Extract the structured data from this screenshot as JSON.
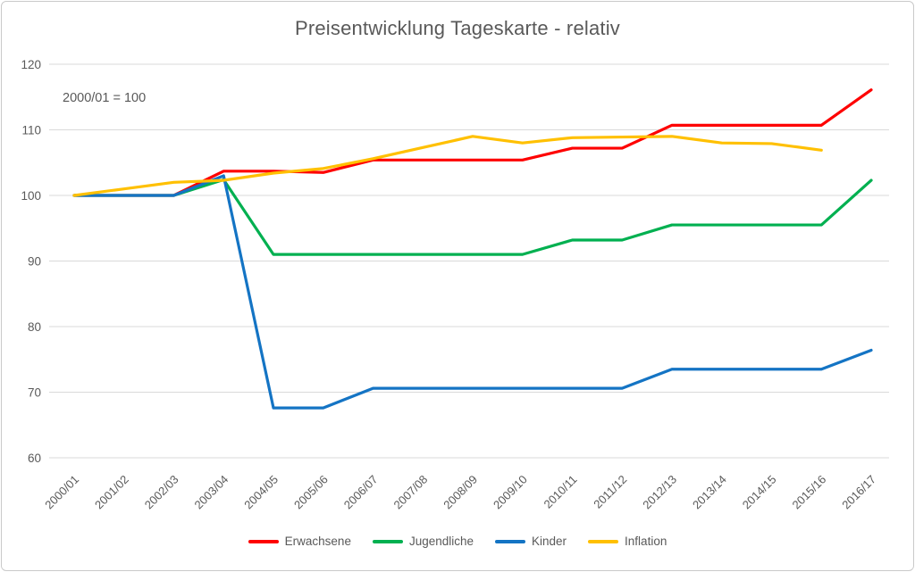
{
  "chart_data": {
    "type": "line",
    "title": "Preisentwicklung Tageskarte - relativ",
    "annotation": "2000/01 = 100",
    "categories": [
      "2000/01",
      "2001/02",
      "2002/03",
      "2003/04",
      "2004/05",
      "2005/06",
      "2006/07",
      "2007/08",
      "2008/09",
      "2009/10",
      "2010/11",
      "2011/12",
      "2012/13",
      "2013/14",
      "2014/15",
      "2015/16",
      "2016/17"
    ],
    "series": [
      {
        "name": "Erwachsene",
        "color": "#fe0000",
        "values": [
          100,
          100,
          100,
          103.7,
          103.7,
          103.5,
          105.4,
          105.4,
          105.4,
          105.4,
          107.2,
          107.2,
          110.7,
          110.7,
          110.7,
          110.7,
          116.1
        ]
      },
      {
        "name": "Jugendliche",
        "color": "#00b050",
        "values": [
          100,
          100,
          100,
          102.4,
          91,
          91,
          91,
          91,
          91,
          91,
          93.2,
          93.2,
          95.5,
          95.5,
          95.5,
          95.5,
          102.3
        ]
      },
      {
        "name": "Kinder",
        "color": "#1474c4",
        "values": [
          100,
          100,
          100,
          103,
          67.6,
          67.6,
          70.6,
          70.6,
          70.6,
          70.6,
          70.6,
          70.6,
          73.5,
          73.5,
          73.5,
          73.5,
          76.4
        ]
      },
      {
        "name": "Inflation",
        "color": "#ffc000",
        "values": [
          100,
          101,
          102,
          102.3,
          103.4,
          104.1,
          105.6,
          107.3,
          109,
          108,
          108.8,
          108.9,
          109,
          108,
          107.9,
          106.9,
          null
        ]
      }
    ],
    "y_ticks": [
      60,
      70,
      80,
      90,
      100,
      110,
      120
    ],
    "ylim": [
      60,
      120
    ],
    "grid": true,
    "legend_position": "bottom",
    "text_color": "#595959",
    "gridline_color": "#d9d9d9"
  }
}
